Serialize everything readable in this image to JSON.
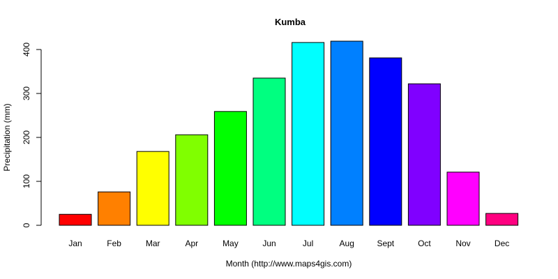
{
  "chart_data": {
    "type": "bar",
    "title": "Kumba",
    "xlabel": "Month (http://www.maps4gis.com)",
    "ylabel": "Precipitation (mm)",
    "categories": [
      "Jan",
      "Feb",
      "Mar",
      "Apr",
      "May",
      "Jun",
      "Jul",
      "Aug",
      "Sept",
      "Oct",
      "Nov",
      "Dec"
    ],
    "values": [
      25,
      76,
      168,
      206,
      259,
      335,
      416,
      419,
      381,
      322,
      121,
      27
    ],
    "colors": [
      "#FF0000",
      "#FF8000",
      "#FFFF00",
      "#80FF00",
      "#00FF00",
      "#00FF80",
      "#00FFFF",
      "#0080FF",
      "#0000FF",
      "#8000FF",
      "#FF00FF",
      "#FF0080"
    ],
    "yticks": [
      0,
      100,
      200,
      300,
      400
    ],
    "ylim": [
      0,
      420
    ],
    "grid": false,
    "legend": "none"
  }
}
